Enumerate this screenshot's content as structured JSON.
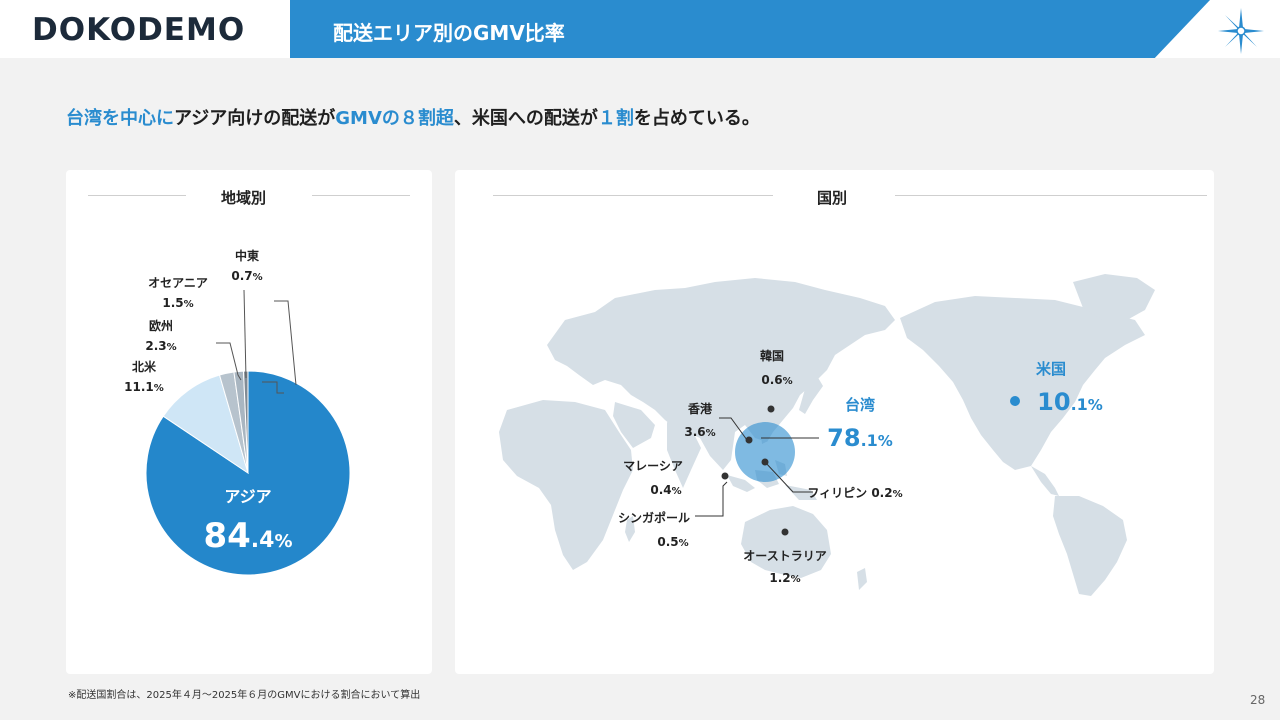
{
  "header": {
    "logo": "DOKODEMO",
    "title": "配送エリア別のGMV比率"
  },
  "headline": {
    "part1": "台湾を中心に",
    "part2": "アジア向けの配送が",
    "part3": "GMVの８割超",
    "part4": "、米国への配送が",
    "part5": "１割",
    "part6": "を占めている。"
  },
  "left_card": {
    "title": "地域別"
  },
  "right_card": {
    "title": "国別"
  },
  "chart_data": [
    {
      "type": "pie",
      "title": "地域別",
      "slices": [
        {
          "label": "アジア",
          "value": 84.4,
          "color": "#2487cb"
        },
        {
          "label": "北米",
          "value": 11.1,
          "color": "#cfe6f6"
        },
        {
          "label": "欧州",
          "value": 2.3,
          "color": "#b7c3cd"
        },
        {
          "label": "オセアニア",
          "value": 1.5,
          "color": "#a9b6c1"
        },
        {
          "label": "中東",
          "value": 0.7,
          "color": "#808b95"
        }
      ]
    },
    {
      "type": "map",
      "title": "国別",
      "points": [
        {
          "label": "台湾",
          "value": 78.1,
          "highlight": true
        },
        {
          "label": "米国",
          "value": 10.1,
          "highlight": true
        },
        {
          "label": "香港",
          "value": 3.6
        },
        {
          "label": "オーストラリア",
          "value": 1.2
        },
        {
          "label": "韓国",
          "value": 0.6
        },
        {
          "label": "シンガポール",
          "value": 0.5
        },
        {
          "label": "マレーシア",
          "value": 0.4
        },
        {
          "label": "フィリピン",
          "value": 0.2
        }
      ]
    }
  ],
  "colors": {
    "accent": "#2a8ccf",
    "map_land": "#d6dfe6",
    "pie_main": "#2487cb"
  },
  "footnote": "※配送国割合は、2025年４月～2025年６月のGMVにおける割合において算出",
  "page_number": "28"
}
